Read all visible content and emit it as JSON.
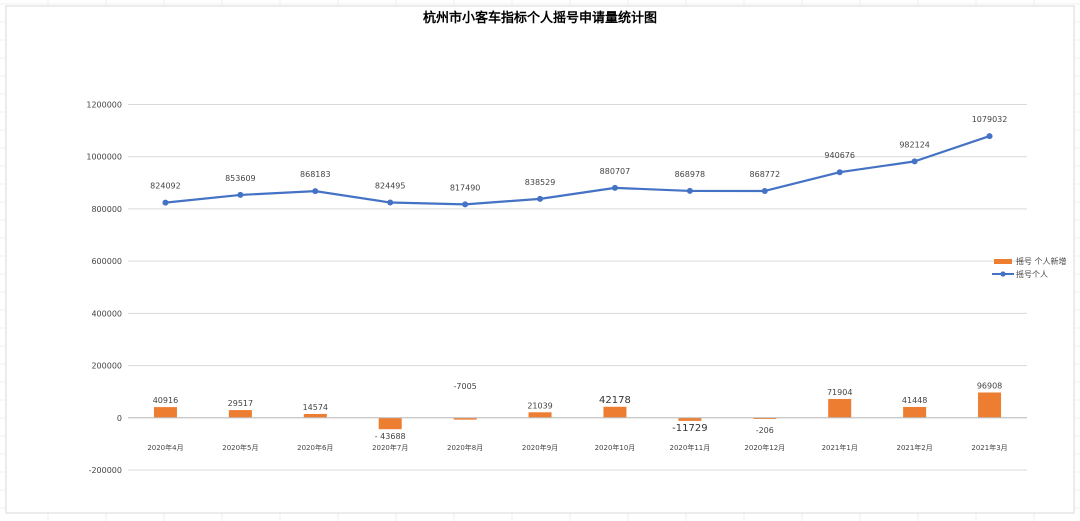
{
  "chart_data": {
    "type": "bar+line",
    "title": "杭州市小客车指标个人摇号申请量统计图",
    "categories": [
      "2020年4月",
      "2020年5月",
      "2020年6月",
      "2020年7月",
      "2020年8月",
      "2020年9月",
      "2020年10月",
      "2020年11月",
      "2020年12月",
      "2021年1月",
      "2021年2月",
      "2021年3月"
    ],
    "series": [
      {
        "name": "摇号 个人新增",
        "type": "bar",
        "color": "#ED7D31",
        "values": [
          40916,
          29517,
          14574,
          -43688,
          -7005,
          21039,
          42178,
          -11729,
          -206,
          71904,
          41448,
          96908
        ]
      },
      {
        "name": "摇号个人",
        "type": "line",
        "color": "#4472C4",
        "values": [
          824092,
          853609,
          868183,
          824495,
          817490,
          838529,
          880707,
          868978,
          868772,
          940676,
          982124,
          1079032
        ]
      }
    ],
    "ylim": [
      -200000,
      1200000
    ],
    "yticks": [
      "-200000",
      "0",
      "200000",
      "400000",
      "600000",
      "800000",
      "1000000",
      "1200000"
    ],
    "ytick_values": [
      -200000,
      0,
      200000,
      400000,
      600000,
      800000,
      1000000,
      1200000
    ],
    "grid": true,
    "legend": "right"
  }
}
